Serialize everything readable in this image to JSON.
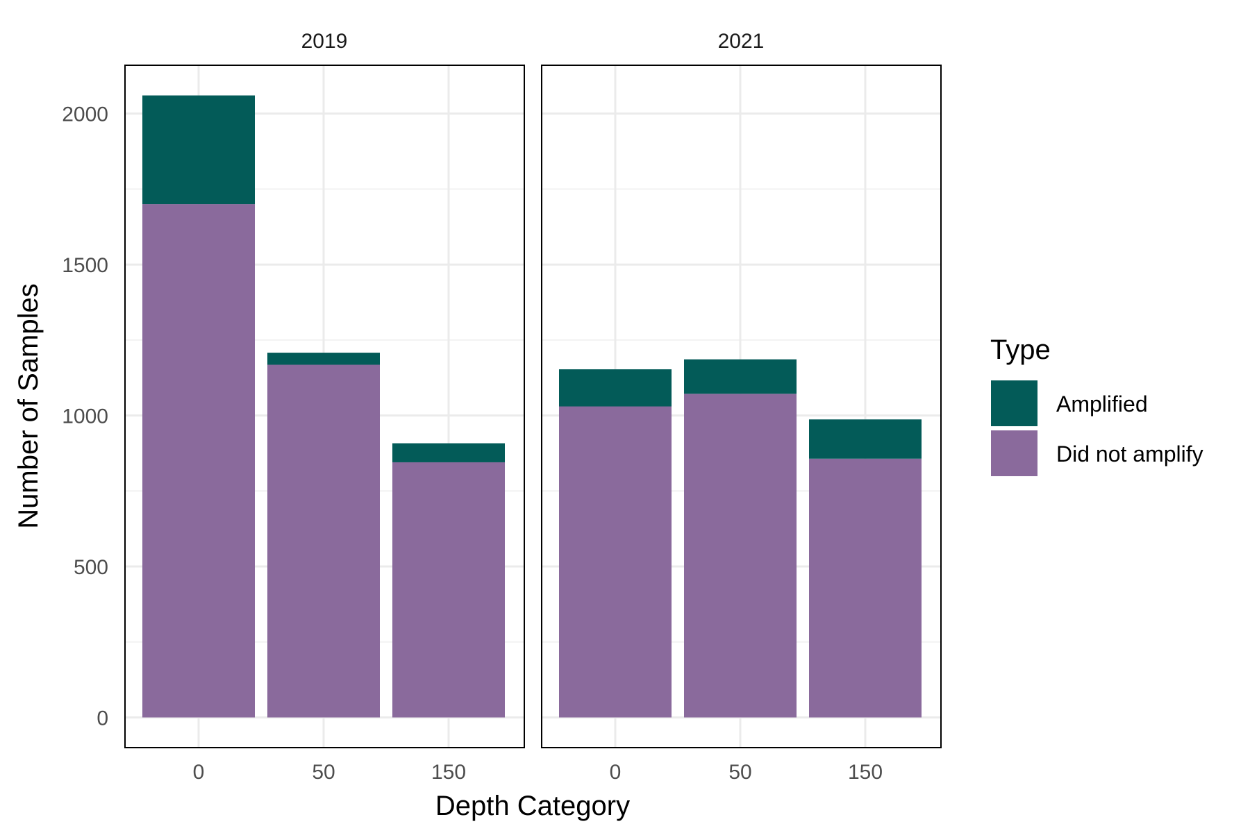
{
  "chart_data": {
    "type": "bar",
    "stacked": true,
    "xlabel": "Depth Category",
    "ylabel": "Number of Samples",
    "ylim": [
      -100,
      2160
    ],
    "yticks": [
      0,
      500,
      1000,
      1500,
      2000
    ],
    "grid": true,
    "legend": {
      "title": "Type",
      "position": "right"
    },
    "categories": [
      "0",
      "50",
      "150"
    ],
    "colors": {
      "Amplified": "#035b58",
      "Did not amplify": "#8a6a9c"
    },
    "facets": [
      {
        "title": "2019",
        "series": [
          {
            "name": "Did not amplify",
            "values": [
              1700,
              1168,
              845
            ]
          },
          {
            "name": "Amplified",
            "values": [
              360,
              40,
              63
            ]
          }
        ]
      },
      {
        "title": "2021",
        "series": [
          {
            "name": "Did not amplify",
            "values": [
              1030,
              1072,
              857
            ]
          },
          {
            "name": "Amplified",
            "values": [
              123,
              114,
              130
            ]
          }
        ]
      }
    ]
  }
}
